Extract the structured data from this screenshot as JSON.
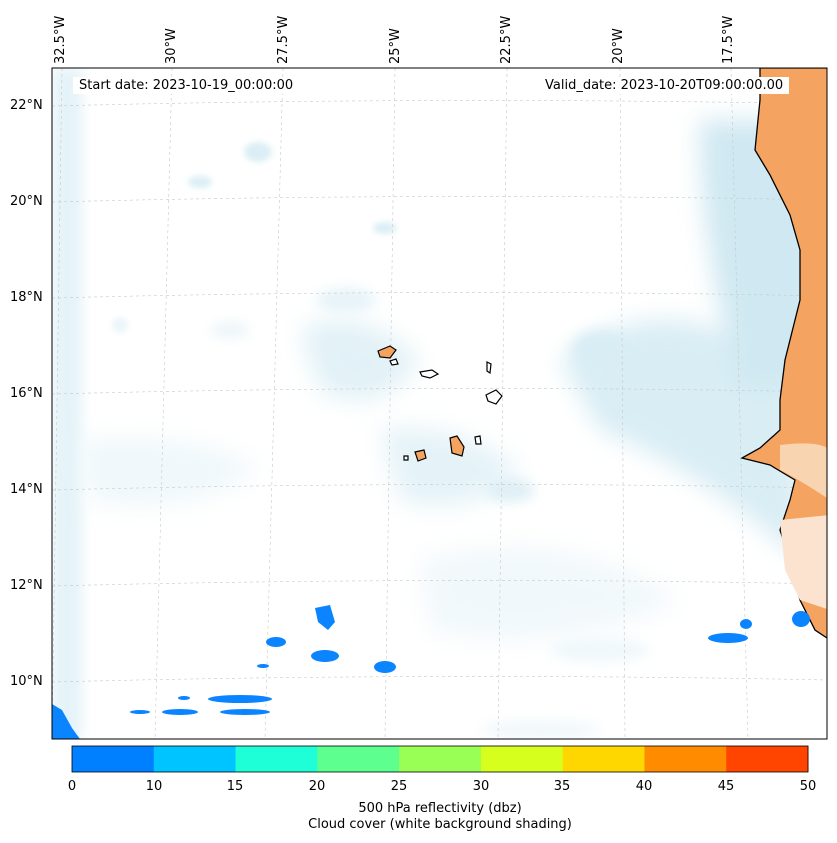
{
  "header": {
    "start_date": "Start date: 2023-10-19_00:00:00",
    "valid_date": "Valid_date: 2023-10-20T09:00:00.00"
  },
  "axes": {
    "lon_labels": [
      "32.5°W",
      "30°W",
      "27.5°W",
      "25°W",
      "22.5°W",
      "20°W",
      "17.5°W"
    ],
    "lat_labels": [
      "22°N",
      "20°N",
      "18°N",
      "16°N",
      "14°N",
      "12°N",
      "10°N"
    ]
  },
  "colorbar": {
    "ticks": [
      "0",
      "10",
      "15",
      "20",
      "25",
      "30",
      "35",
      "40",
      "45",
      "50"
    ],
    "colors": [
      "#0080ff",
      "#00c4ff",
      "#1effd8",
      "#5dff8f",
      "#9aff55",
      "#d6ff1e",
      "#ffd700",
      "#ff8c00",
      "#ff4500"
    ],
    "label_line1": "500 hPa reflectivity (dbz)",
    "label_line2": "Cloud cover (white background shading)"
  },
  "colors": {
    "land": "#f4a460",
    "cloud": "#add8e6",
    "reflectivity_low": "#0a84ff"
  }
}
